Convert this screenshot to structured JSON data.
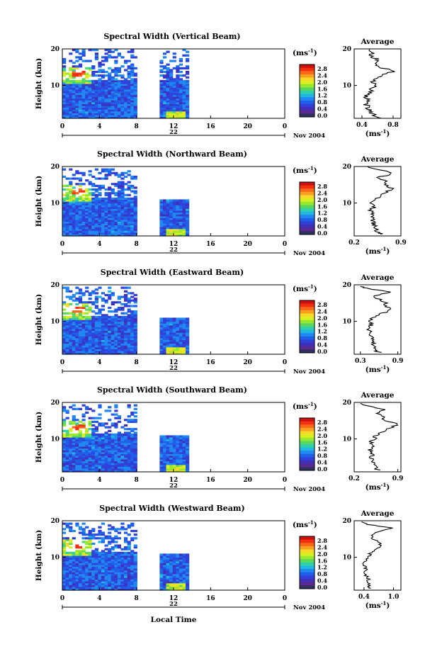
{
  "chart_data": {
    "type": "heatmap",
    "panels": [
      {
        "title": "Spectral Width (Vertical Beam)",
        "date_label": "22",
        "profile_xticks": [
          "0.4",
          "0.8"
        ],
        "profile_xlim": [
          0.3,
          0.9
        ],
        "profile": [
          [
            1.0,
            0.62
          ],
          [
            2,
            0.55
          ],
          [
            3,
            0.5
          ],
          [
            4,
            0.48
          ],
          [
            5,
            0.45
          ],
          [
            6,
            0.47
          ],
          [
            7,
            0.44
          ],
          [
            8,
            0.52
          ],
          [
            9,
            0.5
          ],
          [
            10,
            0.58
          ],
          [
            11,
            0.52
          ],
          [
            12,
            0.6
          ],
          [
            13,
            0.7
          ],
          [
            14,
            0.82
          ],
          [
            15,
            0.62
          ],
          [
            16,
            0.55
          ],
          [
            17,
            0.6
          ],
          [
            18,
            0.52
          ],
          [
            19,
            0.55
          ],
          [
            20,
            0.5
          ]
        ]
      },
      {
        "title": "Spectral Width (Northward Beam)",
        "date_label": "22",
        "profile_xticks": [
          "0.2",
          "0.9"
        ],
        "profile_xlim": [
          0.2,
          0.9
        ],
        "profile": [
          [
            1.5,
            0.62
          ],
          [
            2,
            0.55
          ],
          [
            3,
            0.52
          ],
          [
            4,
            0.5
          ],
          [
            5,
            0.48
          ],
          [
            6,
            0.5
          ],
          [
            7,
            0.47
          ],
          [
            8,
            0.45
          ],
          [
            9,
            0.5
          ],
          [
            10,
            0.47
          ],
          [
            11,
            0.5
          ],
          [
            12,
            0.6
          ],
          [
            13,
            0.7
          ],
          [
            14,
            0.75
          ],
          [
            15,
            0.65
          ],
          [
            16,
            0.7
          ],
          [
            17,
            0.55
          ],
          [
            18,
            0.78
          ],
          [
            19,
            0.6
          ],
          [
            20,
            0.4
          ]
        ]
      },
      {
        "title": "Spectral Width (Eastward Beam)",
        "date_label": "22",
        "profile_xticks": [
          "0.3",
          "0.9"
        ],
        "profile_xlim": [
          0.2,
          0.95
        ],
        "profile": [
          [
            1.5,
            0.6
          ],
          [
            2,
            0.55
          ],
          [
            3,
            0.52
          ],
          [
            4,
            0.5
          ],
          [
            5,
            0.48
          ],
          [
            6,
            0.47
          ],
          [
            7,
            0.45
          ],
          [
            8,
            0.44
          ],
          [
            9,
            0.47
          ],
          [
            10,
            0.45
          ],
          [
            11,
            0.5
          ],
          [
            12,
            0.62
          ],
          [
            13,
            0.78
          ],
          [
            14,
            0.72
          ],
          [
            15,
            0.7
          ],
          [
            16,
            0.6
          ],
          [
            17,
            0.52
          ],
          [
            18,
            0.8
          ],
          [
            19,
            0.4
          ],
          [
            19.5,
            0.3
          ]
        ]
      },
      {
        "title": "Spectral Width (Southward Beam)",
        "date_label": "22",
        "profile_xticks": [
          "0.2",
          "0.9"
        ],
        "profile_xlim": [
          0.2,
          0.95
        ],
        "profile": [
          [
            1.5,
            0.58
          ],
          [
            2,
            0.55
          ],
          [
            3,
            0.53
          ],
          [
            4,
            0.5
          ],
          [
            5,
            0.48
          ],
          [
            6,
            0.5
          ],
          [
            7,
            0.46
          ],
          [
            8,
            0.5
          ],
          [
            9,
            0.47
          ],
          [
            10,
            0.52
          ],
          [
            11,
            0.55
          ],
          [
            12,
            0.65
          ],
          [
            13,
            0.78
          ],
          [
            14,
            0.9
          ],
          [
            15,
            0.7
          ],
          [
            16,
            0.65
          ],
          [
            17,
            0.55
          ],
          [
            18,
            0.7
          ],
          [
            19,
            0.4
          ],
          [
            19.7,
            0.3
          ]
        ]
      },
      {
        "title": "Spectral Width (Westward Beam)",
        "date_label": "22",
        "profile_xticks": [
          "0.4",
          "1.0"
        ],
        "profile_xlim": [
          0.2,
          1.15
        ],
        "profile": [
          [
            1.5,
            0.55
          ],
          [
            2,
            0.5
          ],
          [
            3,
            0.48
          ],
          [
            4,
            0.5
          ],
          [
            5,
            0.45
          ],
          [
            6,
            0.42
          ],
          [
            7,
            0.44
          ],
          [
            8,
            0.4
          ],
          [
            9,
            0.45
          ],
          [
            10,
            0.5
          ],
          [
            11,
            0.52
          ],
          [
            12,
            0.6
          ],
          [
            13,
            0.75
          ],
          [
            14,
            0.7
          ],
          [
            15,
            0.6
          ],
          [
            16,
            0.55
          ],
          [
            17,
            0.7
          ],
          [
            18,
            1.0
          ],
          [
            19,
            0.45
          ],
          [
            19.7,
            0.35
          ]
        ]
      }
    ],
    "y_label": "Height (km)",
    "y_ticks": [
      "10",
      "20"
    ],
    "ylim": [
      1,
      20
    ],
    "x_ticks": [
      "0",
      "4",
      "8",
      "12",
      "16",
      "20",
      "0"
    ],
    "xlim": [
      0,
      24
    ],
    "month_label": "Nov 2004",
    "colorbar_unit": "(ms",
    "colorbar_unit_sup": "-1",
    "colorbar_unit_close": ")",
    "colorbar_ticks": [
      "2.8",
      "2.4",
      "2.0",
      "1.6",
      "1.2",
      "0.8",
      "0.4",
      "0.0"
    ],
    "colorbar_colors": [
      "#cc1010",
      "#f03010",
      "#f86818",
      "#f8a020",
      "#f8d828",
      "#d8f020",
      "#98e830",
      "#58d860",
      "#30d0a8",
      "#20b8e0",
      "#2088f0",
      "#2060e8",
      "#3040d8",
      "#4030b8",
      "#5a2a90",
      "#303060"
    ],
    "profile_title": "Average",
    "profile_yticks": [
      "10",
      "20"
    ],
    "profile_xlabel": "(ms",
    "profile_xlabel_sup": "-1",
    "profile_xlabel_close": ")",
    "x_label": "Local Time",
    "data_gaps_hours": [
      [
        8,
        10.2
      ],
      [
        13.4,
        24
      ]
    ]
  }
}
